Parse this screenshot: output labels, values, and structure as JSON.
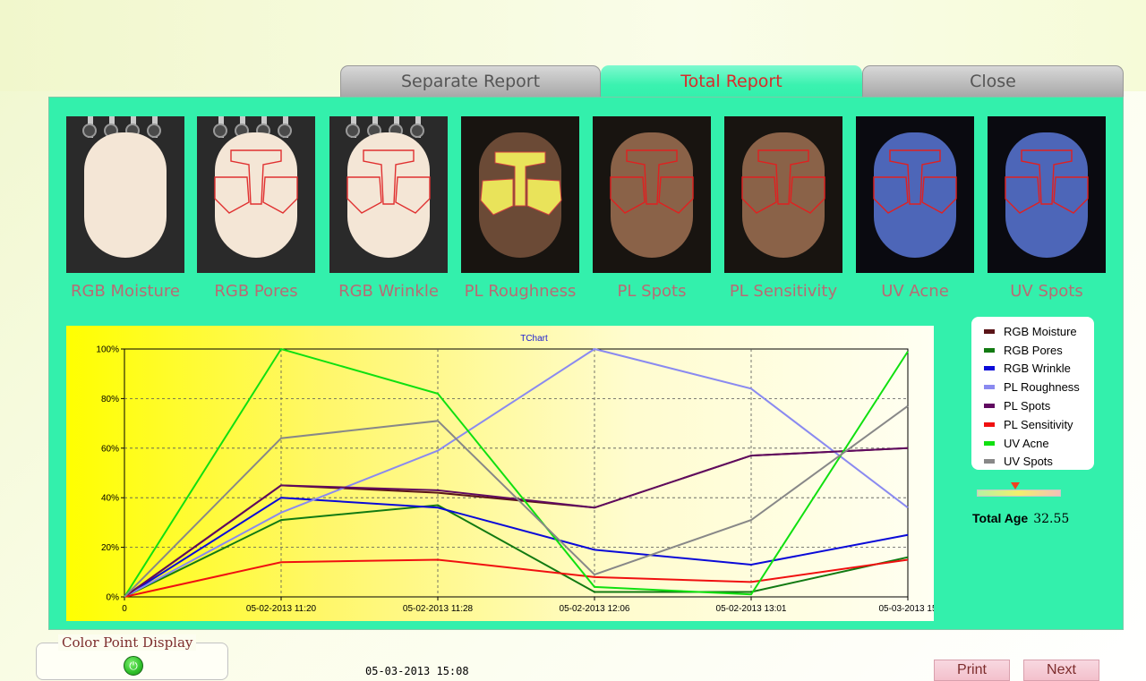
{
  "tabs": {
    "separate": "Separate Report",
    "total": "Total Report",
    "close": "Close"
  },
  "thumbnails": [
    {
      "label": "RGB Moisture",
      "kind": "rgb-plain"
    },
    {
      "label": "RGB Pores",
      "kind": "rgb-outline"
    },
    {
      "label": "RGB Wrinkle",
      "kind": "rgb-outline"
    },
    {
      "label": "PL Roughness",
      "kind": "pl-rough"
    },
    {
      "label": "PL Spots",
      "kind": "pl-outline"
    },
    {
      "label": "PL Sensitivity",
      "kind": "pl-outline"
    },
    {
      "label": "UV Acne",
      "kind": "uv-outline"
    },
    {
      "label": "UV Spots",
      "kind": "uv-outline"
    }
  ],
  "chart_data": {
    "type": "line",
    "title": "TChart",
    "x": [
      "0",
      "05-02-2013 11:20",
      "05-02-2013 11:28",
      "05-02-2013 12:06",
      "05-02-2013 13:01",
      "05-03-2013 15"
    ],
    "ylim": [
      0,
      100
    ],
    "y_ticks": [
      "0%",
      "20%",
      "40%",
      "60%",
      "80%",
      "100%"
    ],
    "grid": true,
    "legend_position": "right",
    "series": [
      {
        "name": "RGB Moisture",
        "color": "#5a1418",
        "values": [
          0,
          45,
          42,
          36,
          57,
          60
        ]
      },
      {
        "name": "RGB Pores",
        "color": "#127a12",
        "values": [
          0,
          31,
          37,
          2,
          2,
          16
        ]
      },
      {
        "name": "RGB Wrinkle",
        "color": "#0a0ad8",
        "values": [
          0,
          40,
          36,
          19,
          13,
          25
        ]
      },
      {
        "name": "PL Roughness",
        "color": "#8a8af0",
        "values": [
          0,
          34,
          59,
          100,
          84,
          36
        ]
      },
      {
        "name": "PL Spots",
        "color": "#600a60",
        "values": [
          0,
          45,
          43,
          36,
          57,
          60
        ]
      },
      {
        "name": "PL Sensitivity",
        "color": "#f01010",
        "values": [
          0,
          14,
          15,
          8,
          6,
          15
        ]
      },
      {
        "name": "UV Acne",
        "color": "#10e010",
        "values": [
          0,
          100,
          82,
          4,
          1,
          99
        ]
      },
      {
        "name": "UV Spots",
        "color": "#888888",
        "values": [
          0,
          64,
          71,
          9,
          31,
          77
        ]
      }
    ]
  },
  "total_age": {
    "label": "Total Age",
    "value": "32.55",
    "gauge_fraction": 0.45
  },
  "color_point_display": {
    "label": "Color Point Display",
    "power_icon": "power-icon"
  },
  "timestamp": "05-03-2013 15:08",
  "buttons": {
    "print": "Print",
    "next": "Next"
  }
}
